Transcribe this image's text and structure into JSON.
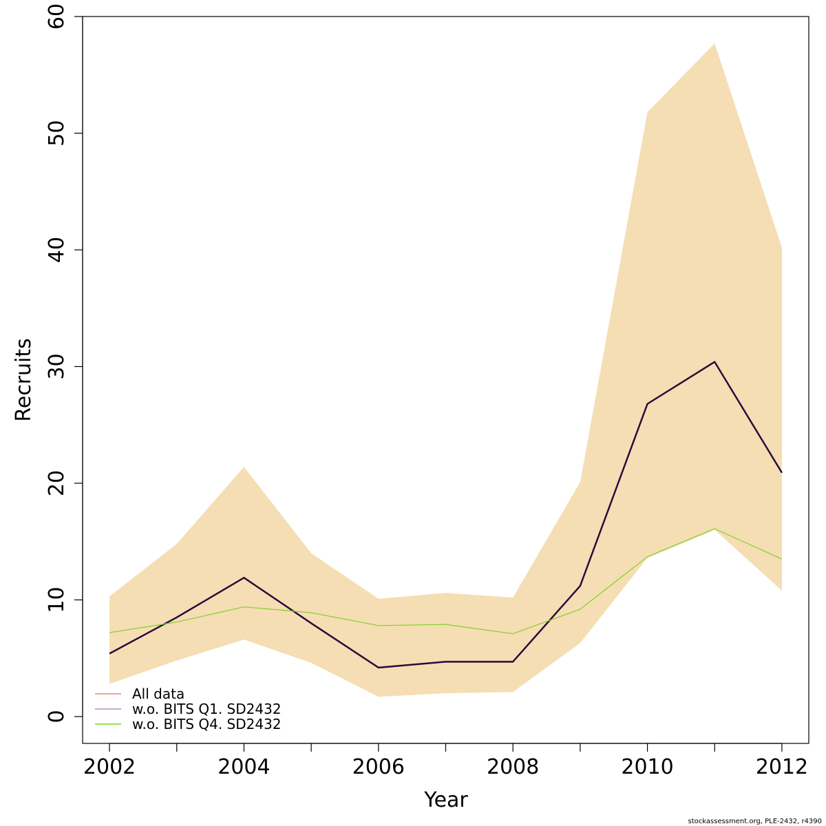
{
  "chart_data": {
    "type": "line",
    "xlabel": "Year",
    "ylabel": "Recruits",
    "xlim": [
      2001.6,
      2012.4
    ],
    "ylim": [
      -2.3,
      60
    ],
    "xticks": [
      2002,
      2004,
      2006,
      2008,
      2010,
      2012
    ],
    "yticks": [
      0,
      10,
      20,
      30,
      40,
      50,
      60
    ],
    "x": [
      2002,
      2003,
      2004,
      2005,
      2006,
      2007,
      2008,
      2009,
      2010,
      2011,
      2012
    ],
    "band": {
      "color": "#f5deb3",
      "lower": [
        2.8,
        4.8,
        6.6,
        4.6,
        1.7,
        2.0,
        2.1,
        6.3,
        13.6,
        16.0,
        10.8
      ],
      "upper": [
        10.3,
        14.8,
        21.4,
        14.0,
        10.1,
        10.6,
        10.2,
        20.1,
        51.8,
        57.7,
        40.2
      ]
    },
    "series": [
      {
        "name": "All data",
        "color": "#e7867e",
        "width": 2,
        "values": [
          5.4,
          8.5,
          11.9,
          8.0,
          4.2,
          4.7,
          4.7,
          11.2,
          26.8,
          30.4,
          20.9
        ]
      },
      {
        "name": "w.o. BITS Q1. SD2432",
        "color": "#2b0a3d",
        "width": 2.5,
        "values": [
          5.4,
          8.5,
          11.9,
          8.0,
          4.2,
          4.7,
          4.7,
          11.2,
          26.8,
          30.4,
          20.9
        ]
      },
      {
        "name": "w.o. BITS Q4. SD2432",
        "color": "#7fd12a",
        "width": 1.2,
        "values": [
          7.2,
          8.1,
          9.4,
          8.9,
          7.8,
          7.9,
          7.1,
          9.2,
          13.7,
          16.1,
          13.5
        ]
      }
    ],
    "legend": {
      "position": "bottom-left",
      "items": [
        {
          "label": "All data",
          "color": "#e7867e"
        },
        {
          "label": "w.o. BITS Q1. SD2432",
          "color": "#b08ac0"
        },
        {
          "label": "w.o. BITS Q4. SD2432",
          "color": "#7fd12a"
        }
      ]
    },
    "grid": false
  },
  "footer": "stockassessment.org, PLE-2432, r4390"
}
